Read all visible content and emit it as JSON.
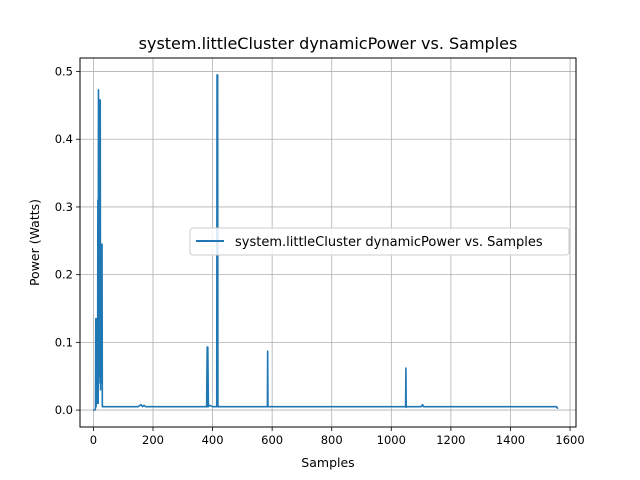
{
  "chart_data": {
    "type": "line",
    "title": "system.littleCluster dynamicPower vs. Samples",
    "xlabel": "Samples",
    "ylabel": "Power (Watts)",
    "xlim": [
      -45,
      1620
    ],
    "ylim": [
      -0.025,
      0.52
    ],
    "xticks": [
      0,
      200,
      400,
      600,
      800,
      1000,
      1200,
      1400,
      1600
    ],
    "yticks": [
      0.0,
      0.1,
      0.2,
      0.3,
      0.4,
      0.5
    ],
    "xtick_labels": [
      "0",
      "200",
      "400",
      "600",
      "800",
      "1000",
      "1200",
      "1400",
      "1600"
    ],
    "ytick_labels": [
      "0.0",
      "0.1",
      "0.2",
      "0.3",
      "0.4",
      "0.5"
    ],
    "grid": true,
    "legend_position": "center-right",
    "series": [
      {
        "name": "system.littleCluster dynamicPower vs. Samples",
        "color": "#1f77b4",
        "x": [
          0,
          5,
          7,
          8,
          9,
          10,
          12,
          13,
          14,
          15,
          16,
          17,
          18,
          19,
          20,
          21,
          22,
          23,
          24,
          25,
          26,
          27,
          28,
          29,
          30,
          31,
          32,
          33,
          35,
          40,
          60,
          100,
          150,
          160,
          165,
          170,
          175,
          180,
          200,
          250,
          300,
          350,
          380,
          382,
          383,
          384,
          386,
          390,
          400,
          410,
          414,
          415,
          416,
          417,
          418,
          419,
          421,
          430,
          450,
          500,
          550,
          580,
          584,
          585,
          586,
          588,
          595,
          650,
          700,
          800,
          900,
          1000,
          1045,
          1048,
          1049,
          1050,
          1052,
          1060,
          1100,
          1105,
          1108,
          1112,
          1150,
          1200,
          1300,
          1400,
          1500,
          1550,
          1555,
          1557,
          1560
        ],
        "y": [
          0.0,
          0.0,
          0.003,
          0.135,
          0.005,
          0.135,
          0.01,
          0.01,
          0.03,
          0.31,
          0.01,
          0.473,
          0.05,
          0.33,
          0.06,
          0.458,
          0.04,
          0.458,
          0.03,
          0.245,
          0.05,
          0.1,
          0.04,
          0.245,
          0.005,
          0.006,
          0.005,
          0.005,
          0.005,
          0.005,
          0.005,
          0.005,
          0.005,
          0.008,
          0.005,
          0.007,
          0.005,
          0.005,
          0.005,
          0.005,
          0.005,
          0.005,
          0.005,
          0.093,
          0.005,
          0.093,
          0.005,
          0.007,
          0.005,
          0.005,
          0.005,
          0.495,
          0.005,
          0.495,
          0.007,
          0.005,
          0.005,
          0.005,
          0.005,
          0.005,
          0.005,
          0.005,
          0.005,
          0.087,
          0.005,
          0.005,
          0.005,
          0.005,
          0.005,
          0.005,
          0.005,
          0.005,
          0.005,
          0.005,
          0.062,
          0.004,
          0.005,
          0.005,
          0.005,
          0.008,
          0.005,
          0.005,
          0.005,
          0.005,
          0.005,
          0.005,
          0.005,
          0.005,
          0.005,
          0.003,
          0.003
        ]
      }
    ]
  }
}
